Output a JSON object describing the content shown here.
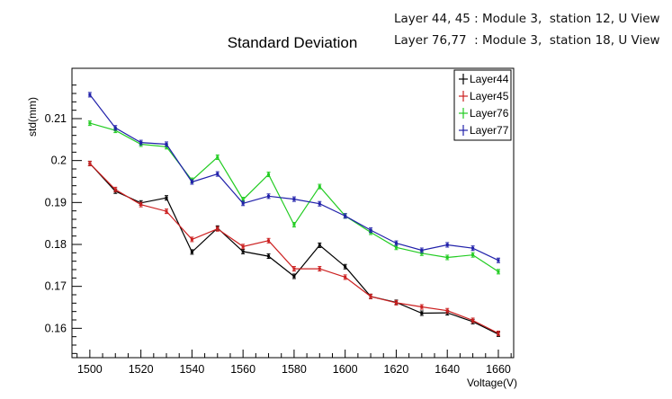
{
  "notes": {
    "line1": "Layer 44, 45 : Module 3,  station 12, U View",
    "line2": "Layer 76,77  : Module 3,  station 18, U View"
  },
  "chart_data": {
    "type": "line",
    "title": "Standard Deviation",
    "xlabel": "Voltage(V)",
    "ylabel": "std(mm)",
    "xlim": [
      1493,
      1666
    ],
    "ylim": [
      0.153,
      0.222
    ],
    "x_ticks": [
      1500,
      1520,
      1540,
      1560,
      1580,
      1600,
      1620,
      1640,
      1660
    ],
    "y_ticks": [
      0.16,
      0.17,
      0.18,
      0.19,
      0.2,
      0.21
    ],
    "y_tick_labels": [
      "0.16",
      "0.17",
      "0.18",
      "0.19",
      "0.2",
      "0.21"
    ],
    "grid": false,
    "legend_position": "top-right",
    "x": [
      1500,
      1510,
      1520,
      1530,
      1540,
      1550,
      1560,
      1570,
      1580,
      1590,
      1600,
      1610,
      1620,
      1630,
      1640,
      1650,
      1660
    ],
    "series": [
      {
        "name": "Layer44",
        "color": "#000000",
        "values": [
          0.1993,
          0.1927,
          0.1899,
          0.1911,
          0.1782,
          0.1839,
          0.1783,
          0.1772,
          0.1724,
          0.1798,
          0.1747,
          0.1676,
          0.1662,
          0.1636,
          0.1637,
          0.1616,
          0.1586
        ]
      },
      {
        "name": "Layer45",
        "color": "#cc2020",
        "values": [
          0.1993,
          0.1931,
          0.1895,
          0.1879,
          0.1812,
          0.1837,
          0.1795,
          0.1809,
          0.1742,
          0.1742,
          0.1722,
          0.1676,
          0.1661,
          0.1651,
          0.1642,
          0.1619,
          0.1588
        ]
      },
      {
        "name": "Layer76",
        "color": "#22cc22",
        "values": [
          0.2089,
          0.2072,
          0.2039,
          0.2033,
          0.1953,
          0.2008,
          0.1907,
          0.1967,
          0.1847,
          0.1938,
          0.1868,
          0.1829,
          0.1793,
          0.1779,
          0.1769,
          0.1775,
          0.1735
        ]
      },
      {
        "name": "Layer77",
        "color": "#2020aa",
        "values": [
          0.2157,
          0.2078,
          0.2043,
          0.2039,
          0.1949,
          0.1968,
          0.1898,
          0.1915,
          0.1908,
          0.1897,
          0.1868,
          0.1834,
          0.1803,
          0.1786,
          0.1799,
          0.1791,
          0.1762
        ]
      }
    ]
  }
}
